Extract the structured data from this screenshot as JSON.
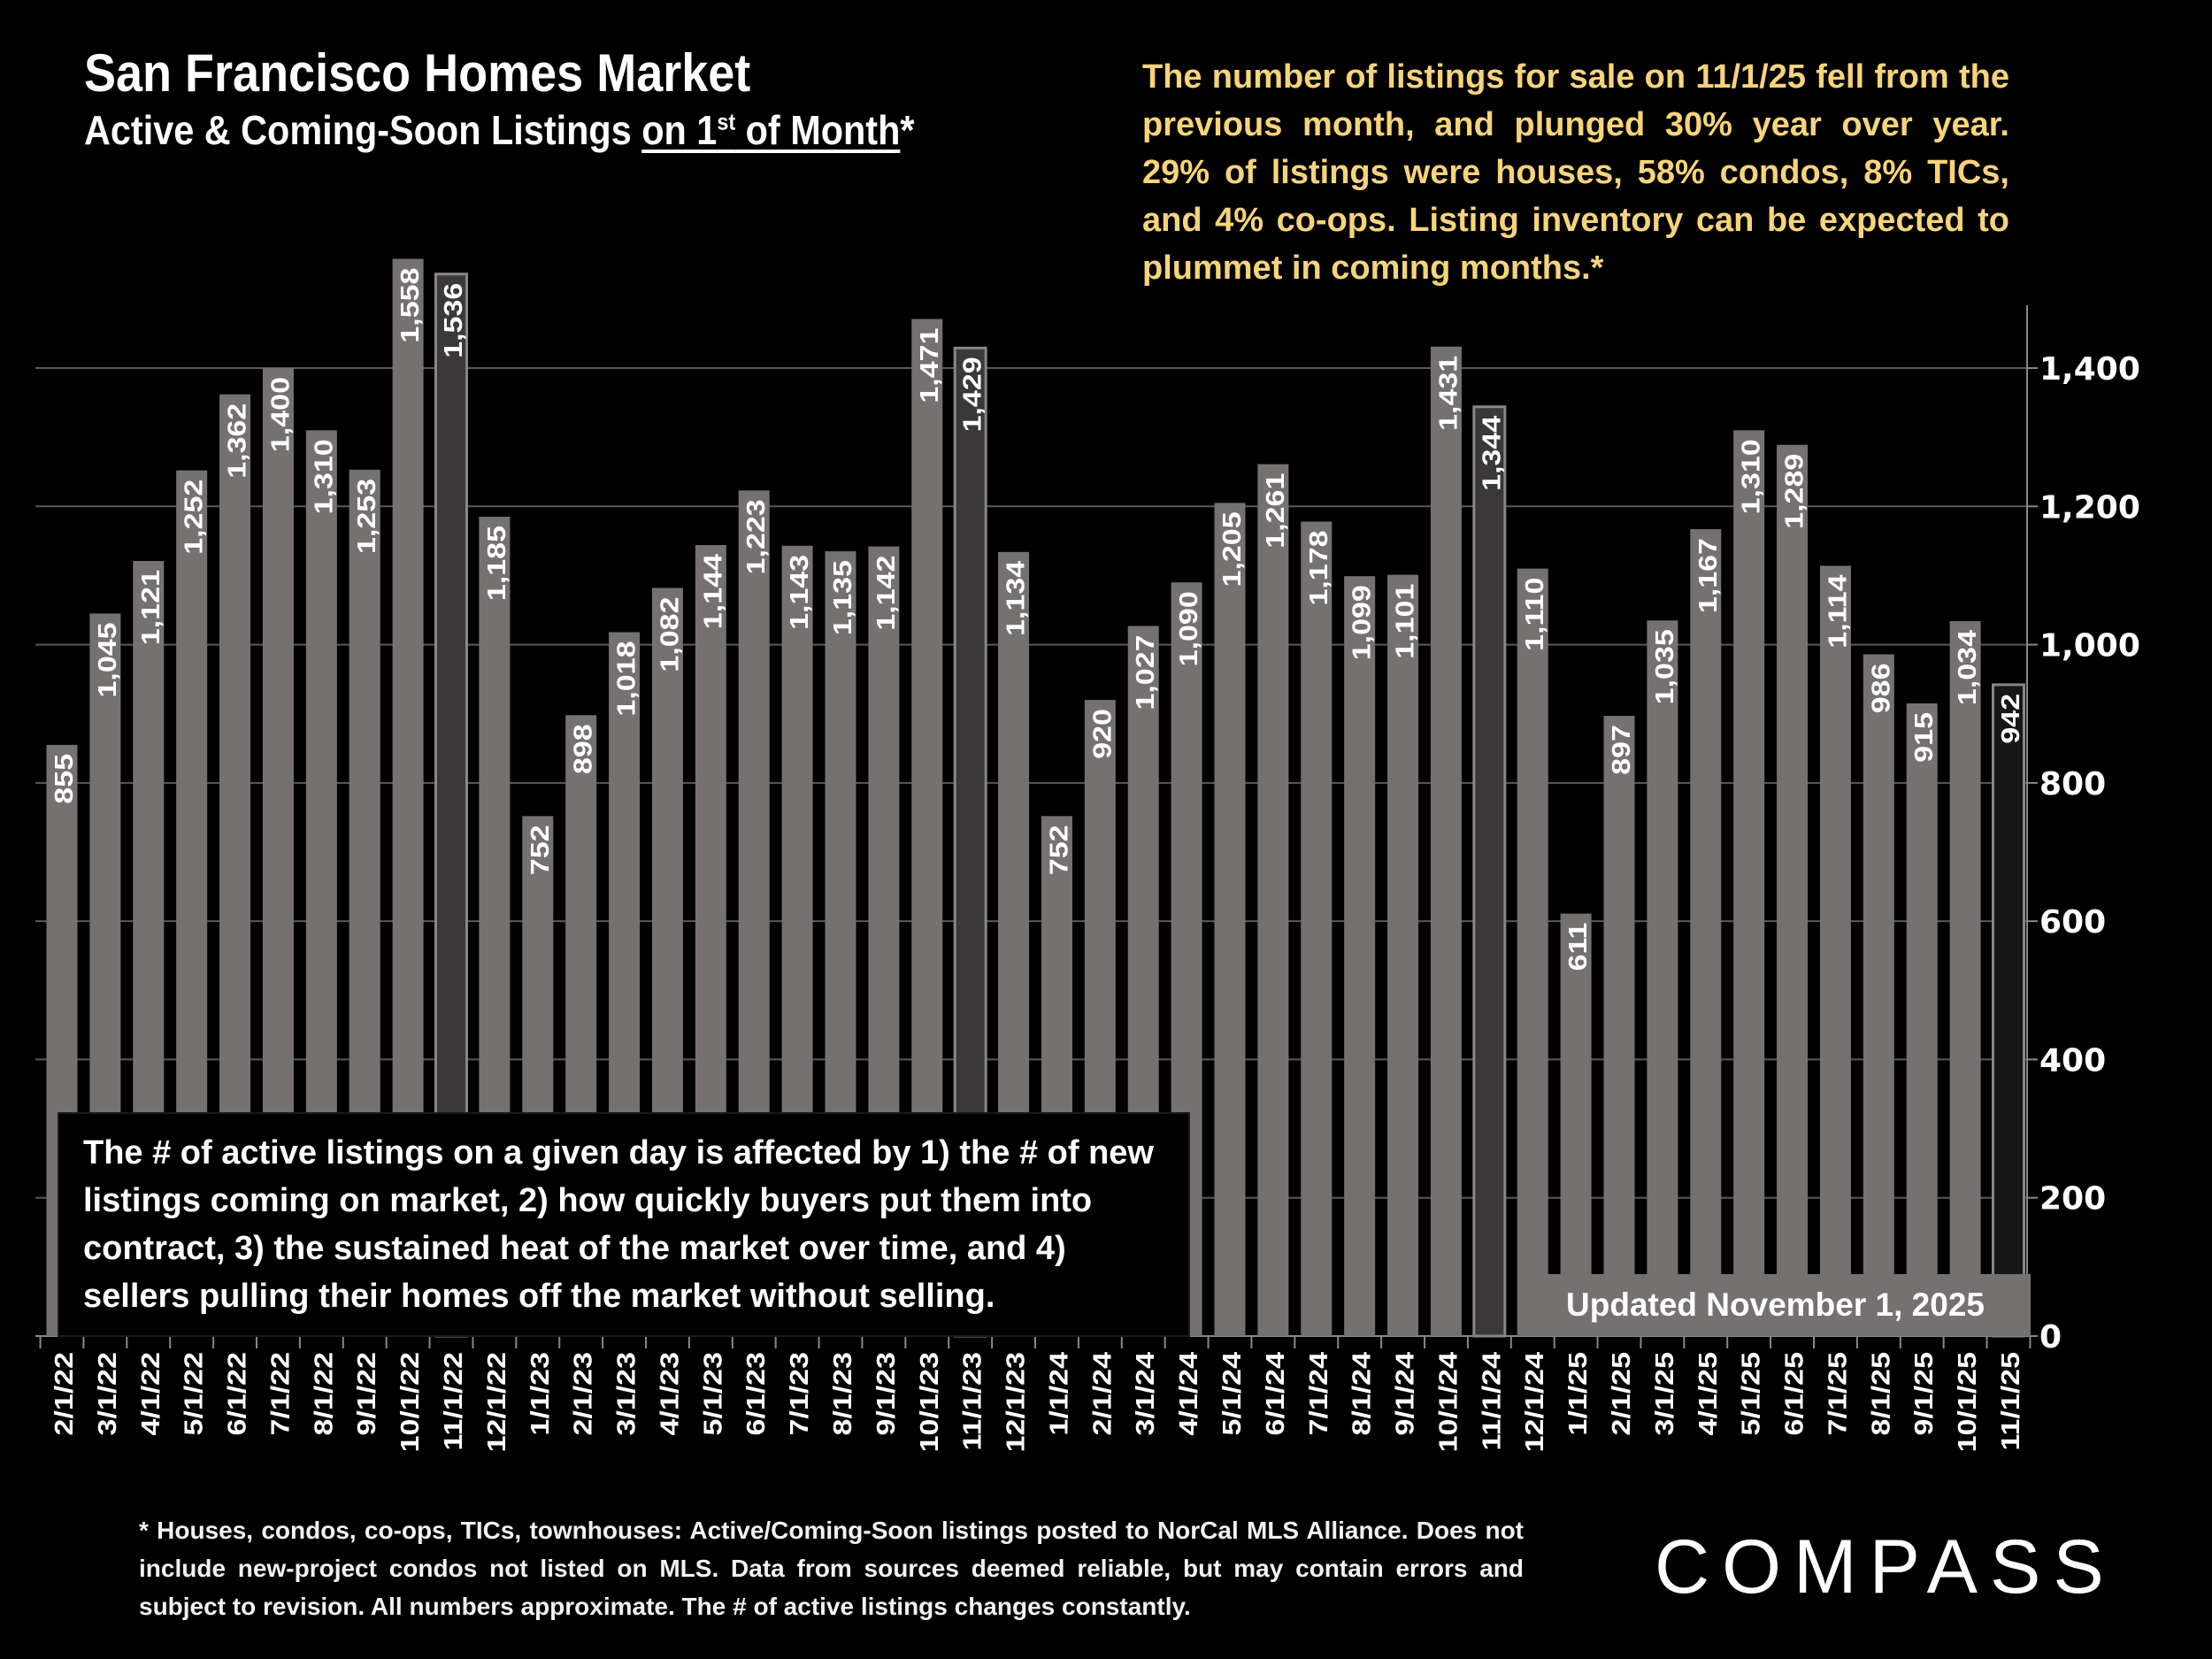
{
  "header": {
    "title": "San Francisco Homes Market",
    "subtitle_prefix": "Active & Coming-Soon Listings ",
    "subtitle_underlined_a": "on 1",
    "subtitle_sup": "st",
    "subtitle_underlined_b": " of Month",
    "subtitle_suffix": "*"
  },
  "annotation": "The number of listings for sale on 11/1/25 fell from the previous month, and plunged 30% year over year. 29% of listings were houses, 58% condos, 8% TICs, and 4% co-ops. Listing inventory can be expected to plummet in coming months.*",
  "note_box": "The # of active listings on a given day is affected by 1) the # of new listings coming on market, 2) how quickly buyers put them into contract, 3) the sustained heat of the market over time, and 4) sellers pulling their homes off the market without selling.",
  "updated_label": "Updated November 1, 2025",
  "footnote": "* Houses, condos, co-ops, TICs, townhouses: Active/Coming-Soon listings posted to NorCal MLS Alliance. Does not include new-project condos not listed on MLS. Data from sources deemed reliable, but may contain errors and subject to revision. All numbers approximate. The # of active listings changes constantly.",
  "logo": "COMPASS",
  "colors": {
    "bar": "#767171",
    "highlight_bar": "#3a3838",
    "current_bar": "#181717",
    "annotation_text": "#f7d47a",
    "background": "#000000"
  },
  "chart_data": {
    "type": "bar",
    "categories": [
      "2/1/22",
      "3/1/22",
      "4/1/22",
      "5/1/22",
      "6/1/22",
      "7/1/22",
      "8/1/22",
      "9/1/22",
      "10/1/22",
      "11/1/22",
      "12/1/22",
      "1/1/23",
      "2/1/23",
      "3/1/23",
      "4/1/23",
      "5/1/23",
      "6/1/23",
      "7/1/23",
      "8/1/23",
      "9/1/23",
      "10/1/23",
      "11/1/23",
      "12/1/23",
      "1/1/24",
      "2/1/24",
      "3/1/24",
      "4/1/24",
      "5/1/24",
      "6/1/24",
      "7/1/24",
      "8/1/24",
      "9/1/24",
      "10/1/24",
      "11/1/24",
      "12/1/24",
      "1/1/25",
      "2/1/25",
      "3/1/25",
      "4/1/25",
      "5/1/25",
      "6/1/25",
      "7/1/25",
      "8/1/25",
      "9/1/25",
      "10/1/25",
      "11/1/25"
    ],
    "values": [
      855,
      1045,
      1121,
      1252,
      1362,
      1400,
      1310,
      1253,
      1558,
      1536,
      1185,
      752,
      898,
      1018,
      1082,
      1144,
      1223,
      1143,
      1135,
      1142,
      1471,
      1429,
      1134,
      752,
      920,
      1027,
      1090,
      1205,
      1261,
      1178,
      1099,
      1101,
      1431,
      1344,
      1110,
      611,
      897,
      1035,
      1167,
      1310,
      1289,
      1114,
      986,
      915,
      1034,
      942
    ],
    "value_labels": [
      "855",
      "1,045",
      "1,121",
      "1,252",
      "1,362",
      "1,400",
      "1,310",
      "1,253",
      "1,558",
      "1,536",
      "1,185",
      "752",
      "898",
      "1,018",
      "1,082",
      "1,144",
      "1,223",
      "1,143",
      "1,135",
      "1,142",
      "1,471",
      "1,429",
      "1,134",
      "752",
      "920",
      "1,027",
      "1,090",
      "1,205",
      "1,261",
      "1,178",
      "1,099",
      "1,101",
      "1,431",
      "1,344",
      "1,110",
      "611",
      "897",
      "1,035",
      "1,167",
      "1,310",
      "1,289",
      "1,114",
      "986",
      "915",
      "1,034",
      "942"
    ],
    "highlighted": [
      "11/1/22",
      "11/1/23",
      "11/1/24"
    ],
    "current": "11/1/25",
    "y_ticks": [
      0,
      200,
      400,
      600,
      800,
      1000,
      1200,
      1400
    ],
    "y_tick_labels": [
      "0",
      "200",
      "400",
      "600",
      "800",
      "1,000",
      "1,200",
      "1,400"
    ],
    "ylim": [
      0,
      1500
    ],
    "y_axis_side": "right",
    "grid": true,
    "title": "San Francisco Homes Market",
    "xlabel": "",
    "ylabel": ""
  }
}
